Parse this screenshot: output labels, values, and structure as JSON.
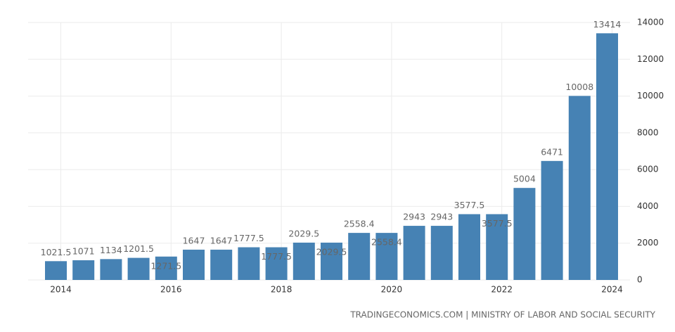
{
  "chart_data": {
    "type": "bar",
    "color": "#4682b4",
    "categories": [
      "2014",
      null,
      null,
      null,
      "2016",
      null,
      null,
      null,
      "2018",
      null,
      null,
      null,
      "2020",
      null,
      null,
      null,
      "2022",
      null,
      null,
      null,
      "2024"
    ],
    "values": [
      1021.5,
      1071,
      1134,
      1201.5,
      1271.5,
      1647,
      1647,
      1777.5,
      1777.5,
      2029.5,
      2029.5,
      2558.4,
      2558.4,
      2943,
      2943,
      3577.5,
      3577.5,
      5004,
      6471,
      10008,
      13414
    ],
    "ylim": [
      0,
      14000
    ],
    "yticks": [
      0,
      2000,
      4000,
      6000,
      8000,
      10000,
      12000,
      14000
    ],
    "grid": true,
    "source": "TRADINGECONOMICS.COM | MINISTRY OF LABOR AND SOCIAL SECURITY"
  }
}
